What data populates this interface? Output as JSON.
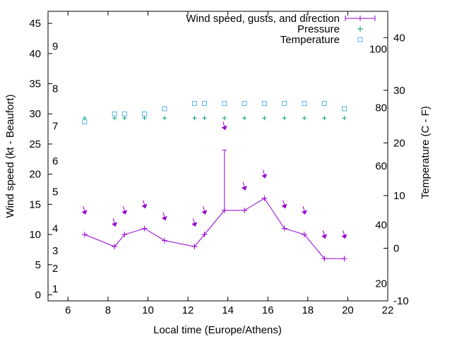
{
  "chart_data": {
    "type": "line",
    "xlabel": "Local time (Europe/Athens)",
    "ylabel": "Wind speed (kt - Beaufort)",
    "y2label": "Temperature (C - F)",
    "xlim": [
      5,
      22
    ],
    "ylim": [
      -1,
      47
    ],
    "y2lim": [
      -10,
      45
    ],
    "x_ticks": [
      "6",
      "8",
      "10",
      "12",
      "14",
      "16",
      "18",
      "20",
      "22"
    ],
    "y_ticks": [
      "0",
      "5",
      "10",
      "15",
      "20",
      "25",
      "30",
      "35",
      "40",
      "45"
    ],
    "y2_ticks": [
      "-10",
      "0",
      "10",
      "20",
      "30",
      "40"
    ],
    "beaufort_labels": [
      {
        "label": "1",
        "value": 1
      },
      {
        "label": "2",
        "value": 4.4
      },
      {
        "label": "3",
        "value": 7.3
      },
      {
        "label": "4",
        "value": 11
      },
      {
        "label": "5",
        "value": 17.1
      },
      {
        "label": "6",
        "value": 22.2
      },
      {
        "label": "7",
        "value": 28
      },
      {
        "label": "8",
        "value": 34.2
      },
      {
        "label": "9",
        "value": 41.2
      }
    ],
    "fahrenheit_labels": [
      {
        "label": "20",
        "value": -6.7
      },
      {
        "label": "40",
        "value": 4.4
      },
      {
        "label": "60",
        "value": 15.6
      },
      {
        "label": "80",
        "value": 26.7
      },
      {
        "label": "100",
        "value": 37.8
      }
    ],
    "legend": {
      "wind": "Wind speed, gusts, and direction",
      "pressure": "Pressure",
      "temperature": "Temperature"
    },
    "series": [
      {
        "name": "Wind speed, gusts, and direction",
        "color": "#9400d3",
        "x": [
          6.83,
          8.33,
          8.83,
          9.83,
          10.83,
          12.33,
          12.83,
          13.83,
          14.83,
          15.83,
          16.83,
          17.83,
          18.83,
          19.83
        ],
        "values": [
          10,
          8,
          10,
          11,
          9,
          8,
          10,
          14,
          14,
          16,
          11,
          10,
          6,
          6
        ],
        "gusts": [
          null,
          null,
          null,
          null,
          null,
          null,
          null,
          24,
          null,
          null,
          null,
          null,
          null,
          null
        ],
        "arrow_y": [
          13.5,
          11.5,
          13.5,
          14.5,
          12.5,
          11.5,
          13.5,
          27.5,
          17.5,
          19.5,
          14.5,
          13.5,
          9.5,
          9.5
        ]
      },
      {
        "name": "Pressure",
        "color": "#009e73",
        "x": [
          6.83,
          8.33,
          8.83,
          9.83,
          10.83,
          12.33,
          12.83,
          13.83,
          14.83,
          15.83,
          16.83,
          17.83,
          18.83,
          19.83
        ],
        "values": [
          29.3,
          29.3,
          29.3,
          29.3,
          29.3,
          29.3,
          29.3,
          29.3,
          29.3,
          29.3,
          29.3,
          29.3,
          29.3,
          29.3
        ]
      },
      {
        "name": "Temperature",
        "color": "#56b4e9",
        "axis": "y2",
        "x": [
          6.83,
          8.33,
          8.83,
          9.83,
          10.83,
          12.33,
          12.83,
          13.83,
          14.83,
          15.83,
          16.83,
          17.83,
          18.83,
          19.83
        ],
        "values": [
          24,
          25.5,
          25.5,
          25.5,
          26.5,
          27.5,
          27.5,
          27.5,
          27.5,
          27.5,
          27.5,
          27.5,
          27.5,
          26.5
        ]
      }
    ]
  }
}
